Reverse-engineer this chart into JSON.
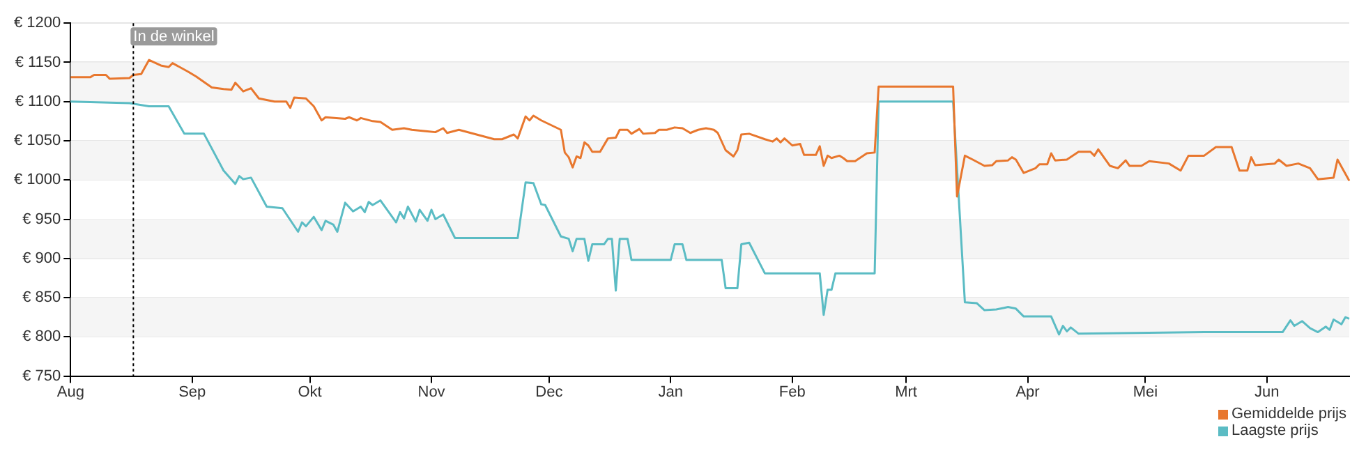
{
  "chart_data": {
    "type": "line",
    "categories": [
      "Aug",
      null,
      null,
      null,
      null,
      null,
      null,
      null,
      null,
      null,
      null,
      null,
      null,
      null,
      null,
      null,
      null,
      null,
      null,
      null,
      null,
      null,
      null,
      null,
      null,
      null,
      null,
      null,
      null,
      null,
      null,
      "Sep",
      null,
      null,
      null,
      null,
      null,
      null,
      null,
      null,
      null,
      null,
      null,
      null,
      null,
      null,
      null,
      null,
      null,
      null,
      null,
      null,
      null,
      null,
      null,
      null,
      null,
      null,
      null,
      null,
      null,
      "Okt",
      null,
      null,
      null,
      null,
      null,
      null,
      null,
      null,
      null,
      null,
      null,
      null,
      null,
      null,
      null,
      null,
      null,
      null,
      null,
      null,
      null,
      null,
      null,
      null,
      null,
      null,
      null,
      null,
      null,
      null,
      "Nov",
      null,
      null,
      null,
      null,
      null,
      null,
      null,
      null,
      null,
      null,
      null,
      null,
      null,
      null,
      null,
      null,
      null,
      null,
      null,
      null,
      null,
      null,
      null,
      null,
      null,
      null,
      null,
      null,
      null,
      "Dec",
      null,
      null,
      null,
      null,
      null,
      null,
      null,
      null,
      null,
      null,
      null,
      null,
      null,
      null,
      null,
      null,
      null,
      null,
      null,
      null,
      null,
      null,
      null,
      null,
      null,
      null,
      null,
      null,
      null,
      null,
      "Jan",
      null,
      null,
      null,
      null,
      null,
      null,
      null,
      null,
      null,
      null,
      null,
      null,
      null,
      null,
      null,
      null,
      null,
      null,
      null,
      null,
      null,
      null,
      null,
      null,
      null,
      null,
      null,
      null,
      null,
      null,
      "Feb",
      null,
      null,
      null,
      null,
      null,
      null,
      null,
      null,
      null,
      null,
      null,
      null,
      null,
      null,
      null,
      null,
      null,
      null,
      null,
      null,
      null,
      null,
      null,
      null,
      null,
      null,
      null,
      null,
      "Mrt",
      null,
      null,
      null,
      null,
      null,
      null,
      null,
      null,
      null,
      null,
      null,
      null,
      null,
      null,
      null,
      null,
      null,
      null,
      null,
      null,
      null,
      null,
      null,
      null,
      null,
      null,
      null,
      null,
      null,
      null,
      "Apr",
      null,
      null,
      null,
      null,
      null,
      null,
      null,
      null,
      null,
      null,
      null,
      null,
      null,
      null,
      null,
      null,
      null,
      null,
      null,
      null,
      null,
      null,
      null,
      null,
      null,
      null,
      null,
      null,
      null,
      "Mei",
      null,
      null,
      null,
      null,
      null,
      null,
      null,
      null,
      null,
      null,
      null,
      null,
      null,
      null,
      null,
      null,
      null,
      null,
      null,
      null,
      null,
      null,
      null,
      null,
      null,
      null,
      null,
      null,
      null,
      null,
      "Jun",
      null,
      null,
      null,
      null,
      null,
      null,
      null,
      null,
      null,
      null,
      null,
      null,
      null,
      null,
      null,
      null,
      null,
      null,
      null,
      null,
      null
    ],
    "ylim": [
      750,
      1200
    ],
    "yticks": [
      {
        "value": 750,
        "label": "€ 750"
      },
      {
        "value": 800,
        "label": "€ 800"
      },
      {
        "value": 850,
        "label": "€ 850"
      },
      {
        "value": 900,
        "label": "€ 900"
      },
      {
        "value": 950,
        "label": "€ 950"
      },
      {
        "value": 1000,
        "label": "€ 1000"
      },
      {
        "value": 1050,
        "label": "€ 1050"
      },
      {
        "value": 1100,
        "label": "€ 1100"
      },
      {
        "value": 1150,
        "label": "€ 1150"
      },
      {
        "value": 1200,
        "label": "€ 1200"
      }
    ],
    "grid": "y",
    "legend": "bottom right",
    "marker": "none",
    "line_style": "solid",
    "annotations": [
      "In de winkel"
    ],
    "series": [
      {
        "name": "Gemiddelde prijs",
        "color": "#e8772e",
        "values": [
          1131,
          null,
          null,
          null,
          null,
          1131,
          1134,
          null,
          null,
          1134,
          1129,
          null,
          null,
          null,
          null,
          1130,
          1134,
          null,
          1135,
          null,
          1153,
          null,
          null,
          1146,
          null,
          1144,
          1149,
          null,
          null,
          null,
          1138,
          null,
          1132,
          null,
          null,
          null,
          1118,
          null,
          null,
          1116,
          null,
          1115,
          1124,
          null,
          1113,
          null,
          1117,
          null,
          1104,
          null,
          null,
          null,
          1100,
          null,
          null,
          1100,
          1092,
          1105,
          null,
          null,
          1104,
          null,
          1094,
          null,
          1076,
          1080,
          null,
          null,
          null,
          null,
          1078,
          1080,
          null,
          1076,
          1079,
          null,
          null,
          1075,
          null,
          1074,
          null,
          null,
          1064,
          null,
          null,
          1066,
          null,
          1064,
          null,
          null,
          null,
          1062,
          null,
          1061,
          null,
          1066,
          1060,
          null,
          null,
          1064,
          null,
          null,
          1060,
          null,
          null,
          null,
          null,
          null,
          1052,
          null,
          1052,
          null,
          null,
          1058,
          1053,
          null,
          1081,
          1076,
          1082,
          null,
          1076,
          null,
          null,
          null,
          null,
          1064,
          1035,
          1029,
          1016,
          1030,
          1028,
          1048,
          1044,
          1036,
          null,
          1036,
          null,
          1053,
          null,
          1054,
          1064,
          null,
          1064,
          1059,
          null,
          1065,
          1059,
          null,
          null,
          1060,
          1064,
          null,
          1064,
          null,
          1067,
          null,
          1066,
          null,
          1060,
          null,
          1064,
          null,
          1066,
          null,
          1064,
          1060,
          null,
          1038,
          null,
          1030,
          1038,
          1058,
          null,
          1059,
          null,
          null,
          null,
          1052,
          null,
          1049,
          1053,
          1048,
          1053,
          null,
          1044,
          null,
          1046,
          1032,
          null,
          null,
          1032,
          1043,
          1018,
          1031,
          1028,
          null,
          1031,
          1028,
          1024,
          null,
          1024,
          null,
          null,
          1034,
          null,
          1035,
          1119,
          null,
          null,
          null,
          null,
          null,
          null,
          null,
          null,
          null,
          null,
          null,
          null,
          null,
          null,
          null,
          null,
          null,
          null,
          1119,
          979,
          null,
          1031,
          null,
          1026,
          null,
          null,
          1018,
          null,
          1019,
          1024,
          null,
          null,
          1025,
          1029,
          1026,
          null,
          1009,
          null,
          1013,
          1015,
          1020,
          null,
          1020,
          1034,
          1025,
          null,
          null,
          1026,
          null,
          null,
          1036,
          null,
          null,
          1036,
          1031,
          1039,
          null,
          null,
          1018,
          null,
          1015,
          null,
          1025,
          1018,
          null,
          null,
          1018,
          null,
          1024,
          null,
          null,
          null,
          null,
          1021,
          null,
          null,
          1012,
          null,
          1031,
          null,
          null,
          null,
          1031,
          null,
          null,
          1042,
          null,
          null,
          null,
          1042,
          null,
          1012,
          null,
          1012,
          1029,
          1019,
          null,
          null,
          null,
          null,
          1021,
          1026,
          null,
          1018,
          null,
          null,
          1021,
          null,
          null,
          1015,
          null,
          1001,
          null,
          null,
          null,
          1003,
          1026,
          null,
          null,
          999
        ]
      },
      {
        "name": "Laagste prijs",
        "color": "#5bbcc4",
        "values": [
          1100,
          null,
          null,
          null,
          null,
          null,
          null,
          null,
          null,
          null,
          null,
          null,
          null,
          null,
          null,
          1098,
          null,
          null,
          null,
          null,
          1094,
          null,
          null,
          null,
          null,
          1094,
          null,
          null,
          null,
          1059,
          null,
          null,
          null,
          null,
          1059,
          null,
          null,
          null,
          null,
          1012,
          null,
          null,
          995,
          1005,
          1001,
          null,
          1003,
          null,
          null,
          null,
          966,
          null,
          null,
          null,
          964,
          null,
          null,
          null,
          934,
          946,
          941,
          null,
          953,
          null,
          936,
          948,
          null,
          943,
          934,
          null,
          971,
          null,
          960,
          null,
          966,
          959,
          972,
          968,
          null,
          974,
          null,
          null,
          null,
          946,
          959,
          951,
          966,
          null,
          947,
          962,
          null,
          948,
          962,
          950,
          null,
          956,
          null,
          null,
          926,
          null,
          null,
          null,
          null,
          null,
          null,
          null,
          null,
          null,
          null,
          null,
          null,
          null,
          null,
          null,
          926,
          null,
          997,
          null,
          996,
          null,
          969,
          968,
          null,
          null,
          null,
          928,
          null,
          925,
          909,
          925,
          null,
          925,
          897,
          918,
          null,
          null,
          918,
          925,
          925,
          859,
          925,
          null,
          925,
          898,
          null,
          null,
          null,
          null,
          null,
          null,
          null,
          null,
          null,
          898,
          918,
          null,
          918,
          898,
          null,
          null,
          null,
          null,
          null,
          null,
          null,
          null,
          898,
          862,
          null,
          null,
          862,
          918,
          null,
          920,
          null,
          null,
          null,
          881,
          null,
          null,
          null,
          null,
          null,
          null,
          null,
          null,
          null,
          null,
          null,
          null,
          null,
          881,
          828,
          860,
          860,
          881,
          null,
          null,
          null,
          null,
          null,
          null,
          null,
          null,
          null,
          881,
          1100,
          null,
          null,
          null,
          null,
          null,
          null,
          null,
          null,
          null,
          null,
          null,
          null,
          null,
          null,
          null,
          null,
          null,
          null,
          1100,
          null,
          null,
          844,
          null,
          null,
          843,
          null,
          834,
          null,
          null,
          835,
          null,
          837,
          838,
          null,
          836,
          null,
          826,
          null,
          null,
          null,
          null,
          null,
          null,
          826,
          null,
          803,
          814,
          807,
          812,
          null,
          804,
          null,
          null,
          null,
          null,
          null,
          null,
          null,
          null,
          null,
          null,
          null,
          null,
          null,
          null,
          null,
          null,
          null,
          null,
          null,
          null,
          null,
          null,
          null,
          null,
          null,
          null,
          null,
          null,
          null,
          null,
          null,
          806,
          null,
          null,
          null,
          null,
          null,
          null,
          null,
          null,
          null,
          null,
          null,
          null,
          null,
          null,
          null,
          null,
          null,
          null,
          null,
          806,
          null,
          821,
          814,
          null,
          820,
          null,
          811,
          null,
          806,
          null,
          813,
          809,
          822,
          null,
          816,
          825,
          823
        ]
      }
    ]
  }
}
